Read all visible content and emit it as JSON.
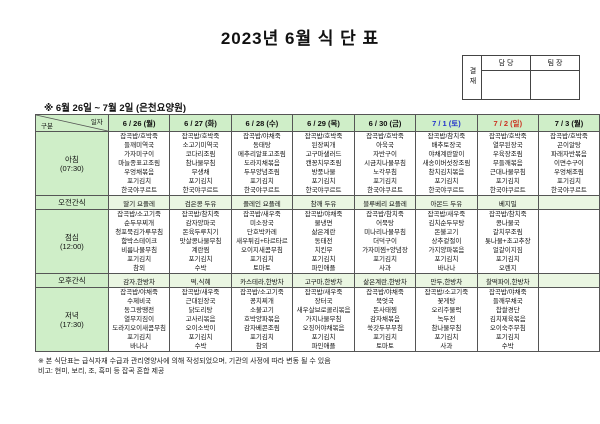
{
  "title": "2023년 6월 식 단 표",
  "approval": {
    "label": "결재",
    "manager": "담 당",
    "team_lead": "팀 장"
  },
  "subtitle": "※ 6월 26일 ~ 7월 2일 (은천요양원)",
  "corner": {
    "top": "일자",
    "bottom": "구분"
  },
  "colors": {
    "header_bg": "#cfeec8",
    "snack_bg": "#eaf6e2",
    "saturday": "#2233cc",
    "sunday": "#cc3322",
    "weekday": "#111111",
    "border": "#555555"
  },
  "columns": [
    {
      "date": "6 / 26 (월)",
      "color": "weekday"
    },
    {
      "date": "6 / 27 (화)",
      "color": "weekday"
    },
    {
      "date": "6 / 28 (수)",
      "color": "weekday"
    },
    {
      "date": "6 / 29 (목)",
      "color": "weekday"
    },
    {
      "date": "6 / 30 (금)",
      "color": "weekday"
    },
    {
      "date": "7 / 1 (토)",
      "color": "saturday"
    },
    {
      "date": "7 / 2 (일)",
      "color": "sunday"
    },
    {
      "date": "7 / 3 (월)",
      "color": "weekday"
    }
  ],
  "rows": [
    {
      "key": "breakfast",
      "type": "meal",
      "label": "아침",
      "time": "(07:30)",
      "cells": [
        [
          "잡곡밥/호박죽",
          "들깨미역국",
          "가자미구이",
          "마늘종표고조림",
          "우엉채볶음",
          "포기김치",
          "한국야쿠르트"
        ],
        [
          "잡곡밥/호박죽",
          "소고기미역국",
          "코다리조림",
          "참나물무침",
          "무생채",
          "포기김치",
          "한국야쿠르트"
        ],
        [
          "잡곡밥/야채죽",
          "동태탕",
          "메추리알표고조림",
          "도라지채볶음",
          "두부양념조림",
          "포기김치",
          "한국야쿠르트"
        ],
        [
          "잡곡밥/호박죽",
          "된장찌개",
          "고구마샐러드",
          "캔꽁치무조림",
          "방풍나물",
          "포기김치",
          "한국야쿠르트"
        ],
        [
          "잡곡밥/호박죽",
          "아욱국",
          "자반구이",
          "시금치나물무침",
          "노각무침",
          "포기김치",
          "한국야쿠르트"
        ],
        [
          "잡곡밥/참치죽",
          "배추토장국",
          "야채계란말이",
          "새송이버섯장조림",
          "참치김치볶음",
          "포기김치",
          "한국야쿠르트"
        ],
        [
          "잡곡밥/호박죽",
          "열무된장국",
          "우육장조림",
          "무들깨볶음",
          "근대나물무침",
          "포기김치",
          "한국야쿠르트"
        ],
        [
          "잡곡밥/호박죽",
          "곤이알탕",
          "파래자반볶음",
          "이면수구이",
          "우엉채조림",
          "포기김치",
          "한국야쿠르트"
        ]
      ]
    },
    {
      "key": "am-snack",
      "type": "snack",
      "label": "오전간식",
      "time": "",
      "cells": [
        [
          "딸기 요플레"
        ],
        [
          "검은콩 두유"
        ],
        [
          "플레인 요플레"
        ],
        [
          "참깨 두유"
        ],
        [
          "블루베리 요플레"
        ],
        [
          "아몬드 두유"
        ],
        [
          "베지밀"
        ],
        [
          ""
        ]
      ]
    },
    {
      "key": "lunch",
      "type": "meal",
      "label": "점심",
      "time": "(12:00)",
      "cells": [
        [
          "잡곡밥/소고기죽",
          "순두부찌개",
          "청포묵김가루무침",
          "함박스테이크",
          "비름나물무침",
          "포기김치",
          "참외"
        ],
        [
          "잡곡밥/참치죽",
          "감자양파국",
          "돈육두루치기",
          "맛살콩나물무침",
          "계란찜",
          "포기김치",
          "수박"
        ],
        [
          "잡곡밥/새우죽",
          "미소장국",
          "단호박카레",
          "새우튀김+타르타르",
          "오이지새콤무침",
          "포기김치",
          "토마토"
        ],
        [
          "잡곡밥/야채죽",
          "물냉면",
          "삶은계란",
          "동태전",
          "치킨무",
          "포기김치",
          "파인애플"
        ],
        [
          "잡곡밥/참치죽",
          "어묵탕",
          "미나리나물무침",
          "더덕구이",
          "가자미찜+양념장",
          "포기김치",
          "사과"
        ],
        [
          "잡곡밥/새우죽",
          "김치순두부탕",
          "돈불고기",
          "상추겉절이",
          "가지양파볶음",
          "포기김치",
          "바나나"
        ],
        [
          "잡곡밥/참치죽",
          "콩나물국",
          "갈치무조림",
          "톳나물+초고추장",
          "얼갈이지짐",
          "포기김치",
          "오렌지"
        ],
        [
          "",
          "",
          "",
          "",
          "",
          "",
          ""
        ]
      ]
    },
    {
      "key": "pm-snack",
      "type": "snack",
      "label": "오후간식",
      "time": "",
      "cells": [
        [
          "감자,한방차"
        ],
        [
          "떡,식혜"
        ],
        [
          "카스테라,한방차"
        ],
        [
          "고구마,한방차"
        ],
        [
          "삶은계란,한방차"
        ],
        [
          "만두,한방차"
        ],
        [
          "찰떡파이,한방차"
        ],
        [
          ""
        ]
      ]
    },
    {
      "key": "dinner",
      "type": "meal",
      "label": "저녁",
      "time": "(17:30)",
      "cells": [
        [
          "잡곡밥/야채죽",
          "수제비국",
          "동그랑땡전",
          "열무지짐이",
          "도라지오이새콤무침",
          "포기김치",
          "바나나"
        ],
        [
          "잡곡밥/새우죽",
          "근대된장국",
          "닭도리탕",
          "고사리볶음",
          "오이소박이",
          "포기김치",
          "수박"
        ],
        [
          "잡곡밥/소고기죽",
          "꽁치찌개",
          "소불고기",
          "호박양파볶음",
          "감자베콘조림",
          "포기김치",
          "참외"
        ],
        [
          "잡곡밥/새우죽",
          "장터국",
          "새우살브로콜리볶음",
          "가지나물무침",
          "오징어야채볶음",
          "포기김치",
          "파인애플"
        ],
        [
          "잡곡밥/야채죽",
          "북엇국",
          "돈사태찜",
          "감자채볶음",
          "쑥갓두부무침",
          "포기김치",
          "토마토"
        ],
        [
          "잡곡밥/소고기죽",
          "꽃게탕",
          "오리주물럭",
          "녹두전",
          "참나물무침",
          "포기김치",
          "사과"
        ],
        [
          "잡곡밥/야채죽",
          "들깨무채국",
          "찹쌀경단",
          "김치제육볶음",
          "오이숙주무침",
          "포기김치",
          "수박"
        ],
        [
          "",
          "",
          "",
          "",
          "",
          "",
          ""
        ]
      ]
    }
  ],
  "notes": [
    "※ 본 식단표는 급식자재 수급과 관리영양사에 의해 작성되었으며, 기관의 사정에 따라 변동 될 수 있음",
    "비고: 현미, 보리, 조, 흑미 등 잡곡 혼합 제공"
  ]
}
